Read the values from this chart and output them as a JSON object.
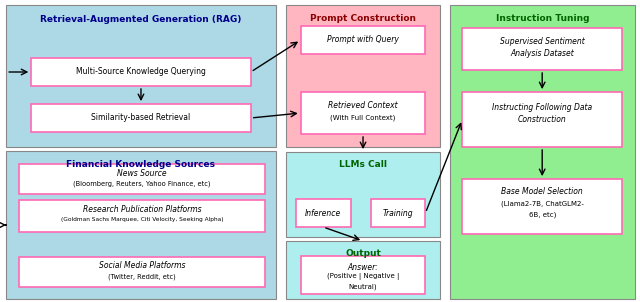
{
  "bg_color": "#ffffff",
  "rag_box_color": "#add8e6",
  "rag_title": "Retrieval-Augmented Generation (RAG)",
  "rag_title_color": "#00008b",
  "prompt_box_color": "#ffb6c1",
  "prompt_title": "Prompt Construction",
  "prompt_title_color": "#8b0000",
  "llm_box_color": "#afeeee",
  "llm_title": "LLMs Call",
  "llm_title_color": "#006400",
  "output_box_color": "#afeeee",
  "instruct_box_color": "#90ee90",
  "instruct_title": "Instruction Tuning",
  "instruct_title_color": "#006400",
  "white_box_color": "#ffffff",
  "white_box_edge": "#ff69b4",
  "arrow_color": "#000000"
}
